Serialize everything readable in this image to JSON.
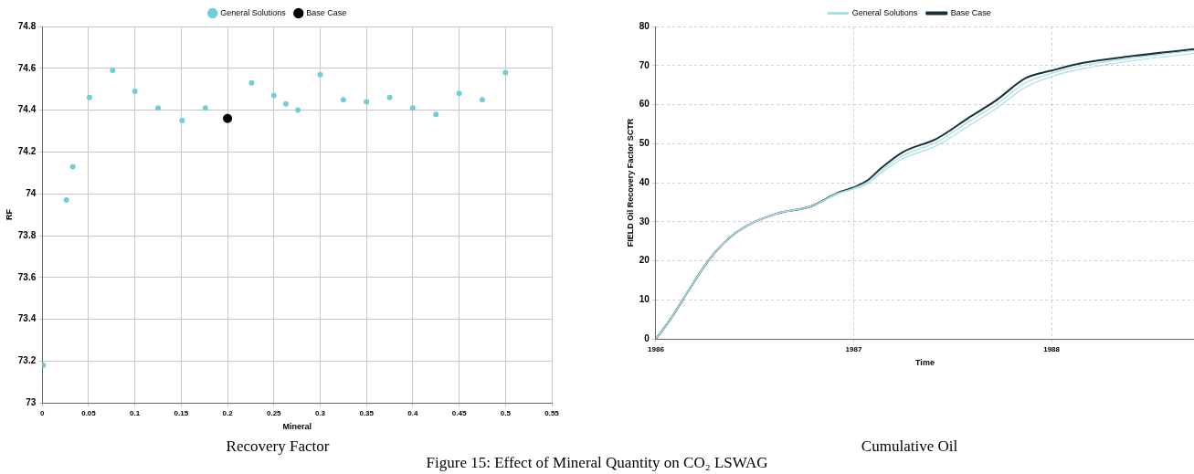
{
  "chart_data": [
    {
      "type": "scatter",
      "title": "Recovery Factor",
      "xlabel": "Mineral",
      "ylabel": "RF",
      "xlim": [
        0,
        0.55
      ],
      "xticks": [
        0,
        0.05,
        0.1,
        0.15,
        0.2,
        0.25,
        0.3,
        0.35,
        0.4,
        0.45,
        0.5,
        0.55
      ],
      "ylim": [
        73,
        74.8
      ],
      "yticks": [
        73,
        73.2,
        73.4,
        73.6,
        73.8,
        74,
        74.2,
        74.4,
        74.6,
        74.8
      ],
      "grid": true,
      "legend": "top",
      "marker": "circle",
      "annotations": [
        "Figure 15: Effect of Mineral Quantity on CO₂ LSWAG"
      ],
      "series": [
        {
          "name": "General Solutions",
          "color": "#6fcfd6",
          "x": [
            0.001,
            0.026,
            0.033,
            0.051,
            0.076,
            0.1,
            0.125,
            0.151,
            0.176,
            0.226,
            0.25,
            0.263,
            0.276,
            0.3,
            0.325,
            0.35,
            0.375,
            0.4,
            0.425,
            0.45,
            0.475,
            0.5
          ],
          "values": [
            73.18,
            73.97,
            74.13,
            74.46,
            74.59,
            74.49,
            74.41,
            74.35,
            74.41,
            74.53,
            74.47,
            74.43,
            74.4,
            74.57,
            74.45,
            74.44,
            74.46,
            74.41,
            74.38,
            74.48,
            74.45,
            74.58
          ]
        },
        {
          "name": "Base Case",
          "color": "#000000",
          "x": [
            0.2
          ],
          "values": [
            74.36
          ]
        }
      ]
    },
    {
      "type": "line",
      "title": "Cumulative Oil",
      "xlabel": "Time",
      "ylabel": "FIELD Oil Recovery Factor SCTR",
      "xlim": [
        1986,
        1988.72
      ],
      "xticks": [
        1986,
        1987,
        1988
      ],
      "ylim": [
        0,
        80
      ],
      "yticks": [
        0,
        10,
        20,
        30,
        40,
        50,
        60,
        70,
        80
      ],
      "grid": true,
      "legend": "top",
      "series": [
        {
          "name": "General Solutions",
          "color": "#a6dfe4",
          "x": [
            1986,
            1986.08,
            1986.17,
            1986.28,
            1986.41,
            1986.61,
            1986.78,
            1986.92,
            1987,
            1987.07,
            1987.14,
            1987.25,
            1987.42,
            1987.58,
            1987.72,
            1987.87,
            1988,
            1988.16,
            1988.42,
            1988.72
          ],
          "values": [
            0,
            5.5,
            12.8,
            21,
            27.4,
            32.1,
            33.9,
            37.2,
            38.4,
            39.8,
            42.6,
            46.2,
            49.5,
            54.5,
            59,
            64.5,
            67.2,
            69.2,
            71.3,
            73.1
          ]
        },
        {
          "color": "#a6dfe4",
          "x": [
            1986,
            1986.08,
            1986.17,
            1986.28,
            1986.41,
            1986.61,
            1986.78,
            1986.92,
            1987,
            1987.07,
            1987.14,
            1987.25,
            1987.42,
            1987.58,
            1987.72,
            1987.87,
            1988,
            1988.16,
            1988.42,
            1988.72
          ],
          "values": [
            0,
            5.5,
            12.8,
            21,
            27.4,
            32.1,
            33.9,
            37.3,
            38.6,
            40.2,
            43.2,
            47,
            50.4,
            55.6,
            60,
            65.6,
            68,
            70,
            72,
            73.8
          ]
        },
        {
          "name": "Base Case",
          "color": "#1b3138",
          "x": [
            1986,
            1986.08,
            1986.17,
            1986.28,
            1986.41,
            1986.61,
            1986.78,
            1986.92,
            1987,
            1987.07,
            1987.14,
            1987.25,
            1987.42,
            1987.58,
            1987.72,
            1987.87,
            1988,
            1988.16,
            1988.42,
            1988.72
          ],
          "values": [
            0,
            5.5,
            12.8,
            21,
            27.4,
            32.1,
            33.9,
            37.4,
            38.8,
            40.6,
            43.8,
            47.9,
            51.3,
            56.6,
            61.1,
            66.8,
            68.7,
            70.7,
            72.5,
            74.2
          ]
        }
      ]
    }
  ]
}
